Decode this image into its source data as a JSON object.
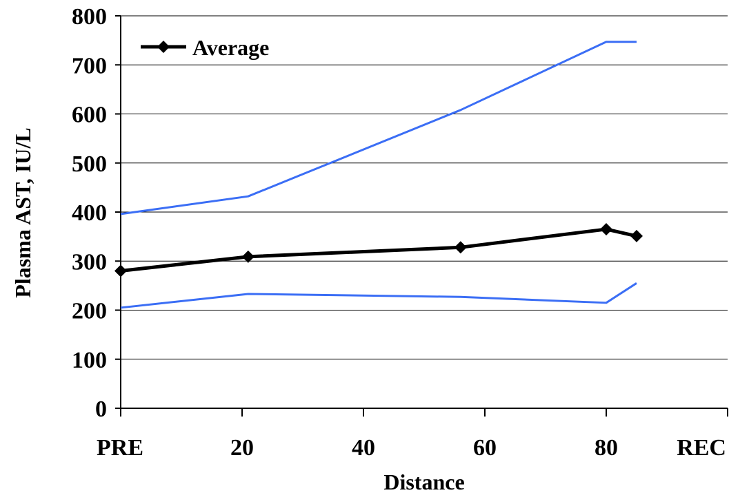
{
  "chart_data": {
    "type": "line",
    "xlabel": "Distance",
    "ylabel": "Plasma AST, IU/L",
    "xlim": [
      0,
      100
    ],
    "ylim": [
      0,
      800
    ],
    "x_ticks": [
      {
        "value": 0,
        "label": "PRE"
      },
      {
        "value": 20,
        "label": "20"
      },
      {
        "value": 40,
        "label": "40"
      },
      {
        "value": 60,
        "label": "60"
      },
      {
        "value": 80,
        "label": "80"
      },
      {
        "value": 100,
        "label": "REC"
      }
    ],
    "y_ticks": [
      0,
      100,
      200,
      300,
      400,
      500,
      600,
      700,
      800
    ],
    "grid": "horizontal",
    "legend_position": "top-left",
    "series": [
      {
        "name": "Average",
        "color": "#000000",
        "marker": "diamond",
        "line_width": 5,
        "x": [
          0,
          21,
          56,
          80,
          85
        ],
        "y": [
          280,
          309,
          328,
          365,
          351
        ]
      },
      {
        "color": "#3b6ef5",
        "marker": "none",
        "line_width": 3,
        "x": [
          0,
          21,
          56,
          80,
          85
        ],
        "y": [
          396,
          432,
          608,
          747,
          747
        ]
      },
      {
        "color": "#3b6ef5",
        "marker": "none",
        "line_width": 3,
        "x": [
          0,
          21,
          56,
          80,
          85
        ],
        "y": [
          205,
          233,
          227,
          215,
          255
        ]
      }
    ]
  }
}
